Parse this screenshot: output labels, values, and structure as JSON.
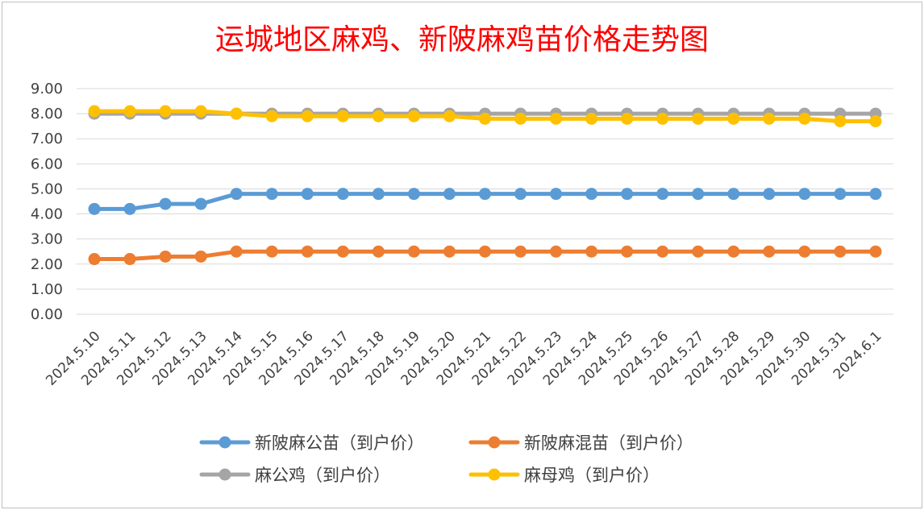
{
  "chart_data": {
    "type": "line",
    "title": "运城地区麻鸡、新陂麻鸡苗价格走势图",
    "xlabel": "",
    "ylabel": "",
    "ylim": [
      0,
      9
    ],
    "yticks": [
      "0.00",
      "1.00",
      "2.00",
      "3.00",
      "4.00",
      "5.00",
      "6.00",
      "7.00",
      "8.00",
      "9.00"
    ],
    "grid": true,
    "legend_position": "bottom",
    "x": [
      "2024.5.10",
      "2024.5.11",
      "2024.5.12",
      "2024.5.13",
      "2024.5.14",
      "2024.5.15",
      "2024.5.16",
      "2024.5.17",
      "2024.5.18",
      "2024.5.19",
      "2024.5.20",
      "2024.5.21",
      "2024.5.22",
      "2024.5.23",
      "2024.5.24",
      "2024.5.25",
      "2024.5.26",
      "2024.5.27",
      "2024.5.28",
      "2024.5.29",
      "2024.5.30",
      "2024.5.31",
      "2024.6.1"
    ],
    "series": [
      {
        "name": "新陂麻公苗（到户价）",
        "color": "#5b9bd5",
        "values": [
          4.2,
          4.2,
          4.4,
          4.4,
          4.8,
          4.8,
          4.8,
          4.8,
          4.8,
          4.8,
          4.8,
          4.8,
          4.8,
          4.8,
          4.8,
          4.8,
          4.8,
          4.8,
          4.8,
          4.8,
          4.8,
          4.8,
          4.8
        ]
      },
      {
        "name": "新陂麻混苗（到户价）",
        "color": "#ed7d31",
        "values": [
          2.2,
          2.2,
          2.3,
          2.3,
          2.5,
          2.5,
          2.5,
          2.5,
          2.5,
          2.5,
          2.5,
          2.5,
          2.5,
          2.5,
          2.5,
          2.5,
          2.5,
          2.5,
          2.5,
          2.5,
          2.5,
          2.5,
          2.5
        ]
      },
      {
        "name": "麻公鸡（到户价）",
        "color": "#a5a5a5",
        "values": [
          8.0,
          8.0,
          8.0,
          8.0,
          8.0,
          8.0,
          8.0,
          8.0,
          8.0,
          8.0,
          8.0,
          8.0,
          8.0,
          8.0,
          8.0,
          8.0,
          8.0,
          8.0,
          8.0,
          8.0,
          8.0,
          8.0,
          8.0
        ]
      },
      {
        "name": "麻母鸡（到户价）",
        "color": "#ffc000",
        "values": [
          8.1,
          8.1,
          8.1,
          8.1,
          8.0,
          7.9,
          7.9,
          7.9,
          7.9,
          7.9,
          7.9,
          7.8,
          7.8,
          7.8,
          7.8,
          7.8,
          7.8,
          7.8,
          7.8,
          7.8,
          7.8,
          7.7,
          7.7
        ]
      }
    ]
  }
}
